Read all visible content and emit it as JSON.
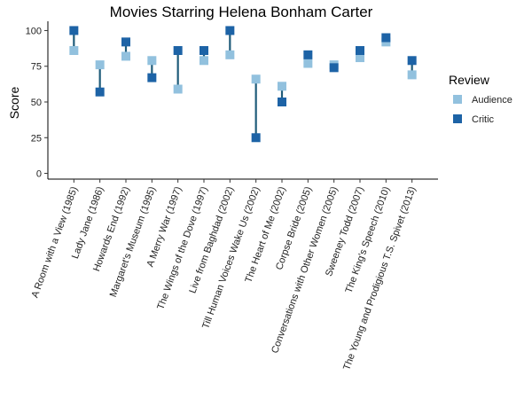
{
  "chart_data": {
    "type": "scatter",
    "title": "Movies Starring Helena Bonham Carter",
    "xlabel": "",
    "ylabel": "Score",
    "ylim": [
      -4,
      104
    ],
    "yticks": [
      0,
      25,
      50,
      75,
      100
    ],
    "grid": false,
    "legend": {
      "title": "Review",
      "placement": "right",
      "entries": [
        {
          "name": "Audience",
          "color": "#92c1de"
        },
        {
          "name": "Critic",
          "color": "#1d63a6"
        }
      ]
    },
    "segment_color": "#1f5c7a",
    "categories": [
      "A Room with a View (1985)",
      "Lady Jane (1986)",
      "Howards End (1992)",
      "Margaret's Museum (1995)",
      "A Merry War (1997)",
      "The Wings of the Dove (1997)",
      "Live from Baghdad (2002)",
      "Till Human Voices Wake Us (2002)",
      "The Heart of Me (2002)",
      "Corpse Bride (2005)",
      "Conversations with Other Women (2005)",
      "Sweeney Todd (2007)",
      "The King's Speech (2010)",
      "The Young and Prodigious T.S. Spivet (2013)"
    ],
    "series": [
      {
        "name": "Audience",
        "color": "#92c1de",
        "values": [
          86,
          76,
          82,
          79,
          59,
          79,
          83,
          66,
          61,
          77,
          76,
          81,
          92,
          69
        ]
      },
      {
        "name": "Critic",
        "color": "#1d63a6",
        "values": [
          100,
          57,
          92,
          67,
          86,
          86,
          100,
          25,
          50,
          83,
          74,
          86,
          95,
          79
        ]
      }
    ]
  }
}
